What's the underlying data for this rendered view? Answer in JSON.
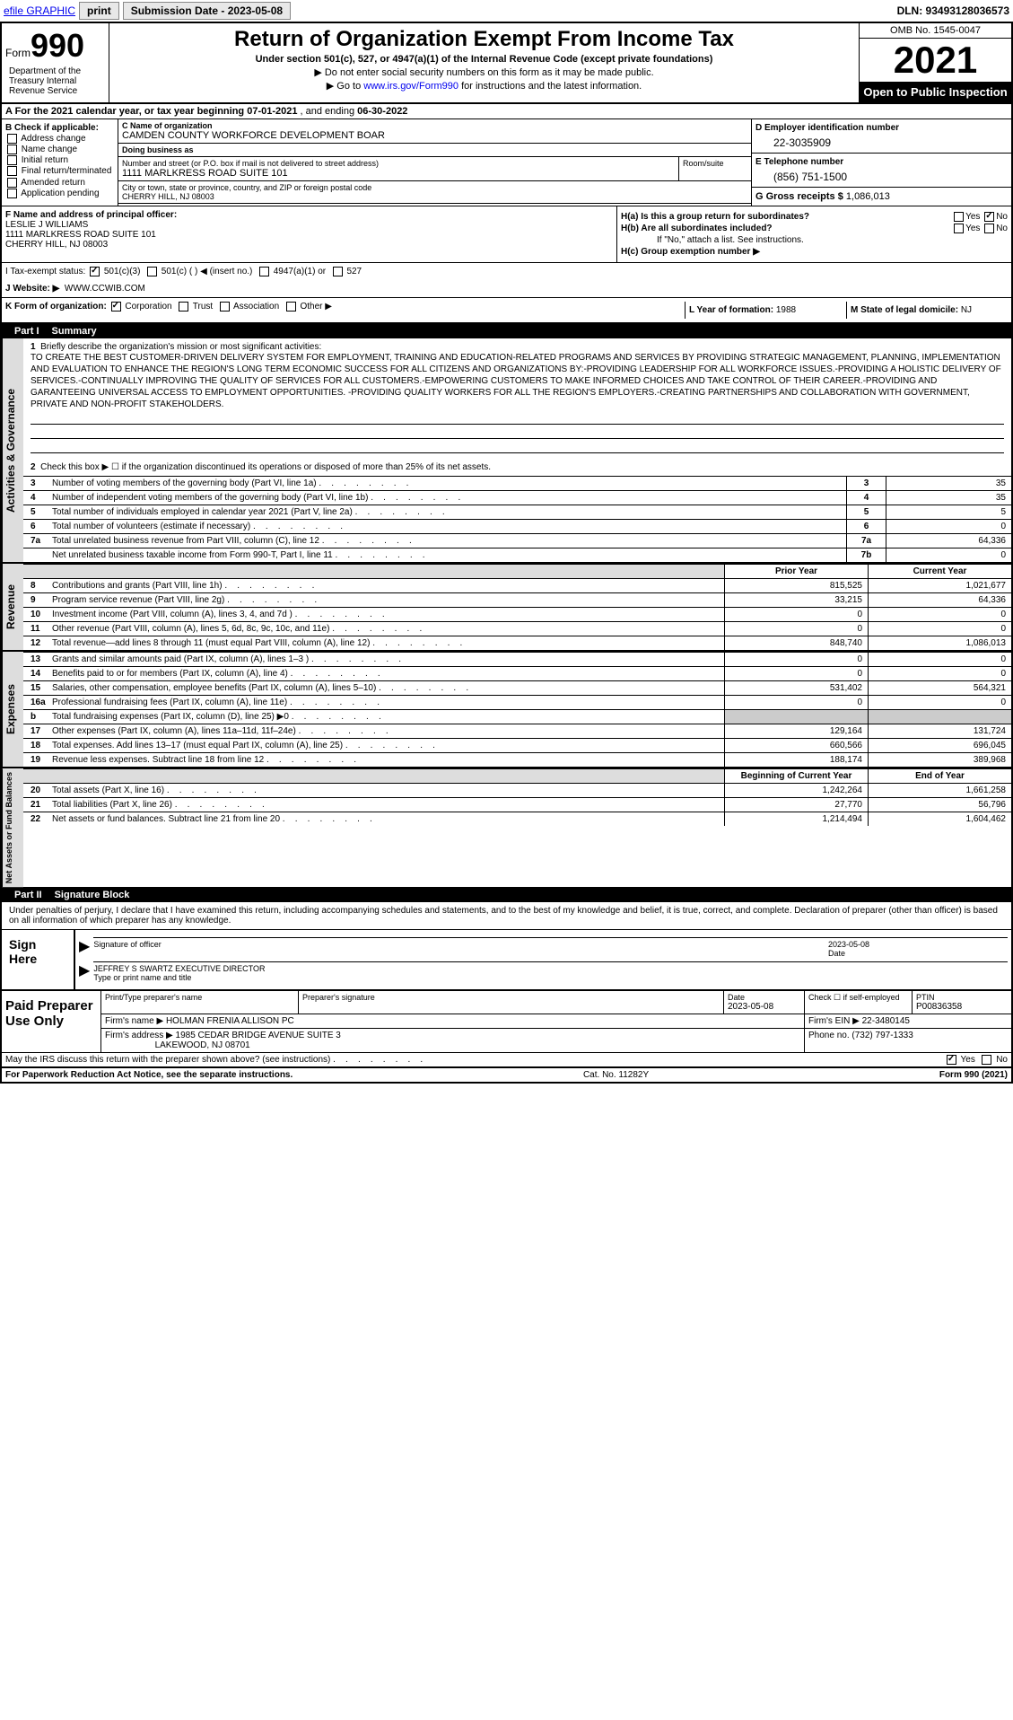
{
  "topbar": {
    "efile": "efile GRAPHIC",
    "print": "print",
    "submission": "Submission Date - 2023-05-08",
    "dln": "DLN: 93493128036573"
  },
  "header": {
    "form_label": "Form",
    "form_num": "990",
    "title": "Return of Organization Exempt From Income Tax",
    "subtitle": "Under section 501(c), 527, or 4947(a)(1) of the Internal Revenue Code (except private foundations)",
    "note1": "▶ Do not enter social security numbers on this form as it may be made public.",
    "note2_pre": "▶ Go to ",
    "note2_link": "www.irs.gov/Form990",
    "note2_post": " for instructions and the latest information.",
    "omb": "OMB No. 1545-0047",
    "year": "2021",
    "open": "Open to Public Inspection",
    "dept": "Department of the Treasury Internal Revenue Service"
  },
  "rowA": {
    "pre": "A For the 2021 calendar year, or tax year beginning ",
    "begin": "07-01-2021",
    "mid": " , and ending ",
    "end": "06-30-2022"
  },
  "secB": {
    "label": "B Check if applicable:",
    "opts": [
      "Address change",
      "Name change",
      "Initial return",
      "Final return/terminated",
      "Amended return",
      "Application pending"
    ]
  },
  "secC": {
    "name_lbl": "C Name of organization",
    "name": "CAMDEN COUNTY WORKFORCE DEVELOPMENT BOAR",
    "dba_lbl": "Doing business as",
    "dba": "",
    "street_lbl": "Number and street (or P.O. box if mail is not delivered to street address)",
    "street": "1111 MARLKRESS ROAD SUITE 101",
    "room_lbl": "Room/suite",
    "city_lbl": "City or town, state or province, country, and ZIP or foreign postal code",
    "city": "CHERRY HILL, NJ  08003"
  },
  "secD": {
    "ein_lbl": "D Employer identification number",
    "ein": "22-3035909",
    "phone_lbl": "E Telephone number",
    "phone": "(856) 751-1500",
    "gross_lbl": "G Gross receipts $",
    "gross": "1,086,013"
  },
  "secF": {
    "lbl": "F Name and address of principal officer:",
    "name": "LESLIE J WILLIAMS",
    "addr1": "1111 MARLKRESS ROAD SUITE 101",
    "addr2": "CHERRY HILL, NJ  08003"
  },
  "secH": {
    "ha": "H(a)  Is this a group return for subordinates?",
    "hb": "H(b)  Are all subordinates included?",
    "hb_note": "If \"No,\" attach a list. See instructions.",
    "hc": "H(c)  Group exemption number ▶",
    "yes": "Yes",
    "no": "No"
  },
  "secI": {
    "lbl": "I   Tax-exempt status:",
    "o1": "501(c)(3)",
    "o2": "501(c) (   ) ◀ (insert no.)",
    "o3": "4947(a)(1) or",
    "o4": "527"
  },
  "secJ": {
    "lbl": "J   Website: ▶",
    "val": "WWW.CCWIB.COM"
  },
  "secK": {
    "lbl": "K Form of organization:",
    "o1": "Corporation",
    "o2": "Trust",
    "o3": "Association",
    "o4": "Other ▶"
  },
  "secL": {
    "lbl": "L Year of formation: ",
    "val": "1988"
  },
  "secM": {
    "lbl": "M State of legal domicile: ",
    "val": "NJ"
  },
  "part1": {
    "hdr_num": "Part I",
    "hdr_title": "Summary",
    "side1": "Activities & Governance",
    "side2": "Revenue",
    "side3": "Expenses",
    "side4": "Net Assets or Fund Balances",
    "l1_lbl": "Briefly describe the organization's mission or most significant activities:",
    "l1_text": "TO CREATE THE BEST CUSTOMER-DRIVEN DELIVERY SYSTEM FOR EMPLOYMENT, TRAINING AND EDUCATION-RELATED PROGRAMS AND SERVICES BY PROVIDING STRATEGIC MANAGEMENT, PLANNING, IMPLEMENTATION AND EVALUATION TO ENHANCE THE REGION'S LONG TERM ECONOMIC SUCCESS FOR ALL CITIZENS AND ORGANIZATIONS BY:-PROVIDING LEADERSHIP FOR ALL WORKFORCE ISSUES.-PROVIDING A HOLISTIC DELIVERY OF SERVICES.-CONTINUALLY IMPROVING THE QUALITY OF SERVICES FOR ALL CUSTOMERS.-EMPOWERING CUSTOMERS TO MAKE INFORMED CHOICES AND TAKE CONTROL OF THEIR CAREER.-PROVIDING AND GARANTEEING UNIVERSAL ACCESS TO EMPLOYMENT OPPORTUNITIES. -PROVIDING QUALITY WORKERS FOR ALL THE REGION'S EMPLOYERS.-CREATING PARTNERSHIPS AND COLLABORATION WITH GOVERNMENT, PRIVATE AND NON-PROFIT STAKEHOLDERS.",
    "l2": "Check this box ▶ ☐ if the organization discontinued its operations or disposed of more than 25% of its net assets.",
    "lines_single": [
      {
        "n": "3",
        "t": "Number of voting members of the governing body (Part VI, line 1a)",
        "box": "3",
        "v": "35"
      },
      {
        "n": "4",
        "t": "Number of independent voting members of the governing body (Part VI, line 1b)",
        "box": "4",
        "v": "35"
      },
      {
        "n": "5",
        "t": "Total number of individuals employed in calendar year 2021 (Part V, line 2a)",
        "box": "5",
        "v": "5"
      },
      {
        "n": "6",
        "t": "Total number of volunteers (estimate if necessary)",
        "box": "6",
        "v": "0"
      },
      {
        "n": "7a",
        "t": "Total unrelated business revenue from Part VIII, column (C), line 12",
        "box": "7a",
        "v": "64,336"
      },
      {
        "n": "",
        "t": "Net unrelated business taxable income from Form 990-T, Part I, line 11",
        "box": "7b",
        "v": "0"
      }
    ],
    "col_prior": "Prior Year",
    "col_curr": "Current Year",
    "rev_lines": [
      {
        "n": "8",
        "t": "Contributions and grants (Part VIII, line 1h)",
        "p": "815,525",
        "c": "1,021,677"
      },
      {
        "n": "9",
        "t": "Program service revenue (Part VIII, line 2g)",
        "p": "33,215",
        "c": "64,336"
      },
      {
        "n": "10",
        "t": "Investment income (Part VIII, column (A), lines 3, 4, and 7d )",
        "p": "0",
        "c": "0"
      },
      {
        "n": "11",
        "t": "Other revenue (Part VIII, column (A), lines 5, 6d, 8c, 9c, 10c, and 11e)",
        "p": "0",
        "c": "0"
      },
      {
        "n": "12",
        "t": "Total revenue—add lines 8 through 11 (must equal Part VIII, column (A), line 12)",
        "p": "848,740",
        "c": "1,086,013"
      }
    ],
    "exp_lines": [
      {
        "n": "13",
        "t": "Grants and similar amounts paid (Part IX, column (A), lines 1–3 )",
        "p": "0",
        "c": "0"
      },
      {
        "n": "14",
        "t": "Benefits paid to or for members (Part IX, column (A), line 4)",
        "p": "0",
        "c": "0"
      },
      {
        "n": "15",
        "t": "Salaries, other compensation, employee benefits (Part IX, column (A), lines 5–10)",
        "p": "531,402",
        "c": "564,321"
      },
      {
        "n": "16a",
        "t": "Professional fundraising fees (Part IX, column (A), line 11e)",
        "p": "0",
        "c": "0"
      },
      {
        "n": "b",
        "t": "Total fundraising expenses (Part IX, column (D), line 25) ▶0",
        "p": "",
        "c": "",
        "shaded": true
      },
      {
        "n": "17",
        "t": "Other expenses (Part IX, column (A), lines 11a–11d, 11f–24e)",
        "p": "129,164",
        "c": "131,724"
      },
      {
        "n": "18",
        "t": "Total expenses. Add lines 13–17 (must equal Part IX, column (A), line 25)",
        "p": "660,566",
        "c": "696,045"
      },
      {
        "n": "19",
        "t": "Revenue less expenses. Subtract line 18 from line 12",
        "p": "188,174",
        "c": "389,968"
      }
    ],
    "col_begin": "Beginning of Current Year",
    "col_end": "End of Year",
    "net_lines": [
      {
        "n": "20",
        "t": "Total assets (Part X, line 16)",
        "p": "1,242,264",
        "c": "1,661,258"
      },
      {
        "n": "21",
        "t": "Total liabilities (Part X, line 26)",
        "p": "27,770",
        "c": "56,796"
      },
      {
        "n": "22",
        "t": "Net assets or fund balances. Subtract line 21 from line 20",
        "p": "1,214,494",
        "c": "1,604,462"
      }
    ]
  },
  "part2": {
    "hdr_num": "Part II",
    "hdr_title": "Signature Block",
    "intro": "Under penalties of perjury, I declare that I have examined this return, including accompanying schedules and statements, and to the best of my knowledge and belief, it is true, correct, and complete. Declaration of preparer (other than officer) is based on all information of which preparer has any knowledge.",
    "sign_here": "Sign Here",
    "sig_officer": "Signature of officer",
    "sig_date": "2023-05-08",
    "date_lbl": "Date",
    "sig_name": "JEFFREY S SWARTZ  EXECUTIVE DIRECTOR",
    "sig_name_lbl": "Type or print name and title",
    "paid_lbl": "Paid Preparer Use Only",
    "prep_name_lbl": "Print/Type preparer's name",
    "prep_sig_lbl": "Preparer's signature",
    "prep_date_lbl": "Date",
    "prep_date": "2023-05-08",
    "prep_self_lbl": "Check ☐ if self-employed",
    "prep_ptin_lbl": "PTIN",
    "prep_ptin": "P00836358",
    "firm_name_lbl": "Firm's name    ▶",
    "firm_name": "HOLMAN FRENIA ALLISON PC",
    "firm_ein_lbl": "Firm's EIN ▶",
    "firm_ein": "22-3480145",
    "firm_addr_lbl": "Firm's address ▶",
    "firm_addr1": "1985 CEDAR BRIDGE AVENUE SUITE 3",
    "firm_addr2": "LAKEWOOD, NJ  08701",
    "firm_phone_lbl": "Phone no.",
    "firm_phone": "(732) 797-1333",
    "discuss": "May the IRS discuss this return with the preparer shown above? (see instructions)"
  },
  "footer": {
    "left": "For Paperwork Reduction Act Notice, see the separate instructions.",
    "center": "Cat. No. 11282Y",
    "right": "Form 990 (2021)"
  }
}
